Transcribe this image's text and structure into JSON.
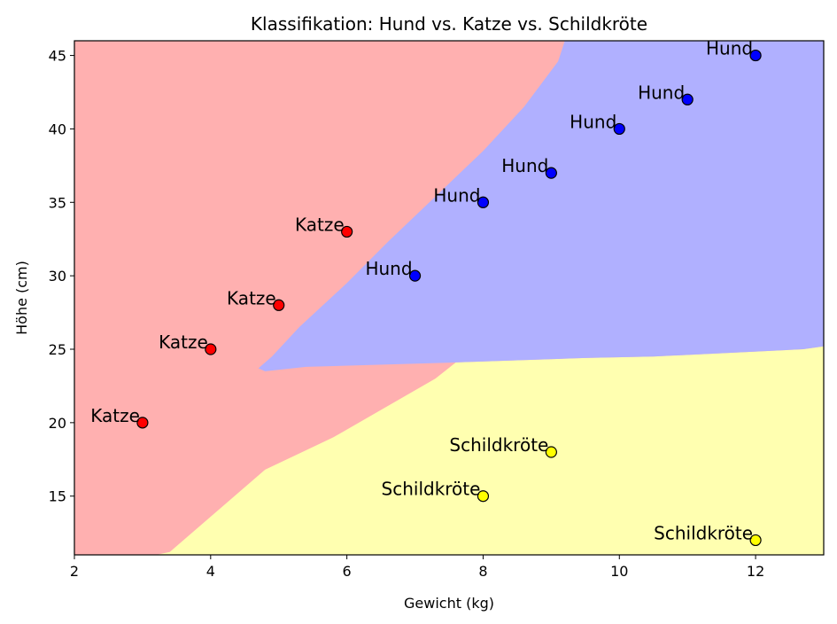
{
  "chart_data": {
    "type": "scatter",
    "title": "Klassifikation: Hund vs. Katze vs. Schildkröte",
    "xlabel": "Gewicht (kg)",
    "ylabel": "Höhe (cm)",
    "xlim": [
      2,
      13
    ],
    "ylim": [
      11,
      46
    ],
    "xticks": [
      2,
      4,
      6,
      8,
      10,
      12
    ],
    "yticks": [
      15,
      20,
      25,
      30,
      35,
      40,
      45
    ],
    "grid": false,
    "colors": {
      "Katze": "#ff0000",
      "Hund": "#0000ff",
      "Schildkröte": "#ffff00",
      "Katze_region": "#ffb0b0",
      "Hund_region": "#b0b0ff",
      "Schildkröte_region": "#ffffb0"
    },
    "points": [
      {
        "x": 3,
        "y": 20,
        "label": "Katze"
      },
      {
        "x": 4,
        "y": 25,
        "label": "Katze"
      },
      {
        "x": 5,
        "y": 28,
        "label": "Katze"
      },
      {
        "x": 6,
        "y": 33,
        "label": "Katze"
      },
      {
        "x": 7,
        "y": 30,
        "label": "Hund"
      },
      {
        "x": 8,
        "y": 35,
        "label": "Hund"
      },
      {
        "x": 9,
        "y": 37,
        "label": "Hund"
      },
      {
        "x": 10,
        "y": 40,
        "label": "Hund"
      },
      {
        "x": 11,
        "y": 42,
        "label": "Hund"
      },
      {
        "x": 12,
        "y": 45,
        "label": "Hund"
      },
      {
        "x": 8,
        "y": 15,
        "label": "Schildkröte"
      },
      {
        "x": 9,
        "y": 18,
        "label": "Schildkröte"
      },
      {
        "x": 12,
        "y": 12,
        "label": "Schildkröte"
      }
    ],
    "decision_regions": [
      {
        "class": "Schildkröte",
        "polygon": [
          [
            3.2,
            11
          ],
          [
            13,
            11
          ],
          [
            13,
            25.2
          ],
          [
            12.7,
            25
          ],
          [
            10.5,
            24.5
          ],
          [
            9.5,
            24.4
          ],
          [
            7.6,
            24.1
          ],
          [
            7.3,
            23
          ],
          [
            5.8,
            19
          ],
          [
            4.8,
            16.8
          ],
          [
            3.4,
            11.2
          ]
        ]
      },
      {
        "class": "Hund",
        "polygon": [
          [
            9.2,
            46
          ],
          [
            13,
            46
          ],
          [
            13,
            25.2
          ],
          [
            12.7,
            25
          ],
          [
            10.5,
            24.5
          ],
          [
            9.5,
            24.4
          ],
          [
            7.6,
            24.1
          ],
          [
            5.4,
            23.8
          ],
          [
            4.8,
            23.5
          ],
          [
            4.7,
            23.7
          ],
          [
            4.9,
            24.5
          ],
          [
            5.3,
            26.5
          ],
          [
            6,
            29.5
          ],
          [
            6.6,
            32.3
          ],
          [
            7.3,
            35.4
          ],
          [
            8,
            38.5
          ],
          [
            8.6,
            41.5
          ],
          [
            9.1,
            44.6
          ]
        ]
      }
    ]
  }
}
